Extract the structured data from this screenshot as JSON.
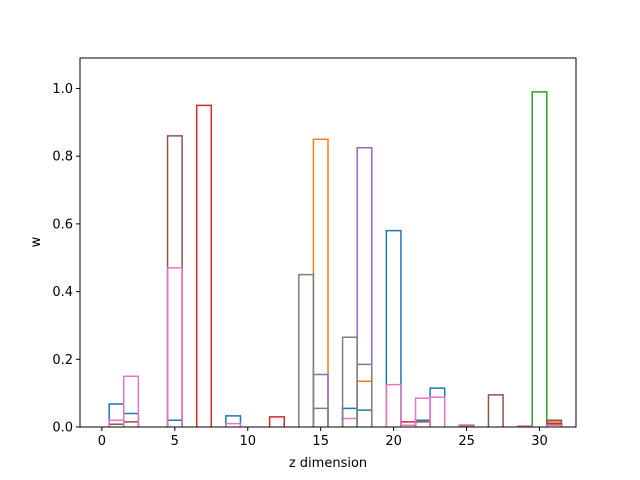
{
  "chart_data": {
    "type": "bar",
    "style": "step-outline histogram, one outlined bar per series per z index",
    "xlabel": "z dimension",
    "ylabel": "w",
    "xlim": [
      -1.5,
      32.5
    ],
    "ylim": [
      0,
      1.09
    ],
    "xticks": [
      0,
      5,
      10,
      15,
      20,
      25,
      30
    ],
    "yticks": [
      0.0,
      0.2,
      0.4,
      0.6,
      0.8,
      1.0
    ],
    "ytick_labels": [
      "0.0",
      "0.2",
      "0.4",
      "0.6",
      "0.8",
      "1.0"
    ],
    "grid": false,
    "legend": "none",
    "x": [
      0,
      1,
      2,
      3,
      4,
      5,
      6,
      7,
      8,
      9,
      10,
      11,
      12,
      13,
      14,
      15,
      16,
      17,
      18,
      19,
      20,
      21,
      22,
      23,
      24,
      25,
      26,
      27,
      28,
      29,
      30,
      31
    ],
    "series": [
      {
        "color": "#1f77b4",
        "values": [
          0,
          0.068,
          0.04,
          0,
          0,
          0.02,
          0,
          0,
          0,
          0.033,
          0,
          0,
          0,
          0,
          0,
          0,
          0,
          0.055,
          0.05,
          0,
          0.58,
          0,
          0.02,
          0.115,
          0,
          0,
          0,
          0,
          0,
          0,
          0,
          0
        ]
      },
      {
        "color": "#ff7f0e",
        "values": [
          0,
          0,
          0,
          0,
          0,
          0,
          0,
          0,
          0,
          0,
          0,
          0,
          0,
          0,
          0,
          0.85,
          0,
          0,
          0.135,
          0,
          0,
          0,
          0,
          0,
          0,
          0,
          0,
          0,
          0,
          0,
          0,
          0.015
        ]
      },
      {
        "color": "#2ca02c",
        "values": [
          0,
          0,
          0,
          0,
          0,
          0,
          0,
          0,
          0,
          0,
          0,
          0,
          0,
          0,
          0,
          0,
          0,
          0,
          0,
          0,
          0,
          0,
          0,
          0,
          0,
          0,
          0,
          0,
          0,
          0,
          0.99,
          0.01
        ]
      },
      {
        "color": "#d62728",
        "values": [
          0,
          0,
          0,
          0,
          0,
          0,
          0,
          0.95,
          0,
          0,
          0,
          0,
          0.03,
          0,
          0,
          0,
          0,
          0,
          0,
          0,
          0,
          0.015,
          0,
          0,
          0,
          0,
          0,
          0,
          0,
          0,
          0,
          0.01
        ]
      },
      {
        "color": "#9467bd",
        "values": [
          0,
          0,
          0,
          0,
          0,
          0,
          0,
          0,
          0,
          0,
          0,
          0,
          0,
          0,
          0,
          0.155,
          0,
          0,
          0.825,
          0,
          0,
          0,
          0,
          0,
          0,
          0,
          0,
          0,
          0,
          0,
          0,
          0
        ]
      },
      {
        "color": "#8c564b",
        "values": [
          0,
          0.008,
          0.015,
          0,
          0,
          0.86,
          0,
          0,
          0,
          0,
          0,
          0,
          0,
          0,
          0,
          0,
          0,
          0,
          0,
          0,
          0,
          0,
          0.015,
          0,
          0,
          0.005,
          0,
          0.095,
          0,
          0,
          0,
          0.02
        ]
      },
      {
        "color": "#e377c2",
        "values": [
          0,
          0.02,
          0.15,
          0,
          0,
          0.47,
          0,
          0,
          0,
          0.01,
          0,
          0,
          0,
          0,
          0,
          0,
          0,
          0.025,
          0,
          0,
          0.125,
          0.005,
          0.085,
          0.088,
          0,
          0.003,
          0,
          0,
          0,
          0.003,
          0,
          0.005
        ]
      },
      {
        "color": "#7f7f7f",
        "values": [
          0,
          0,
          0,
          0,
          0,
          0,
          0,
          0,
          0,
          0,
          0,
          0,
          0,
          0,
          0.45,
          0.055,
          0,
          0.265,
          0.185,
          0,
          0,
          0,
          0,
          0,
          0,
          0,
          0,
          0,
          0,
          0,
          0,
          0
        ]
      }
    ]
  }
}
